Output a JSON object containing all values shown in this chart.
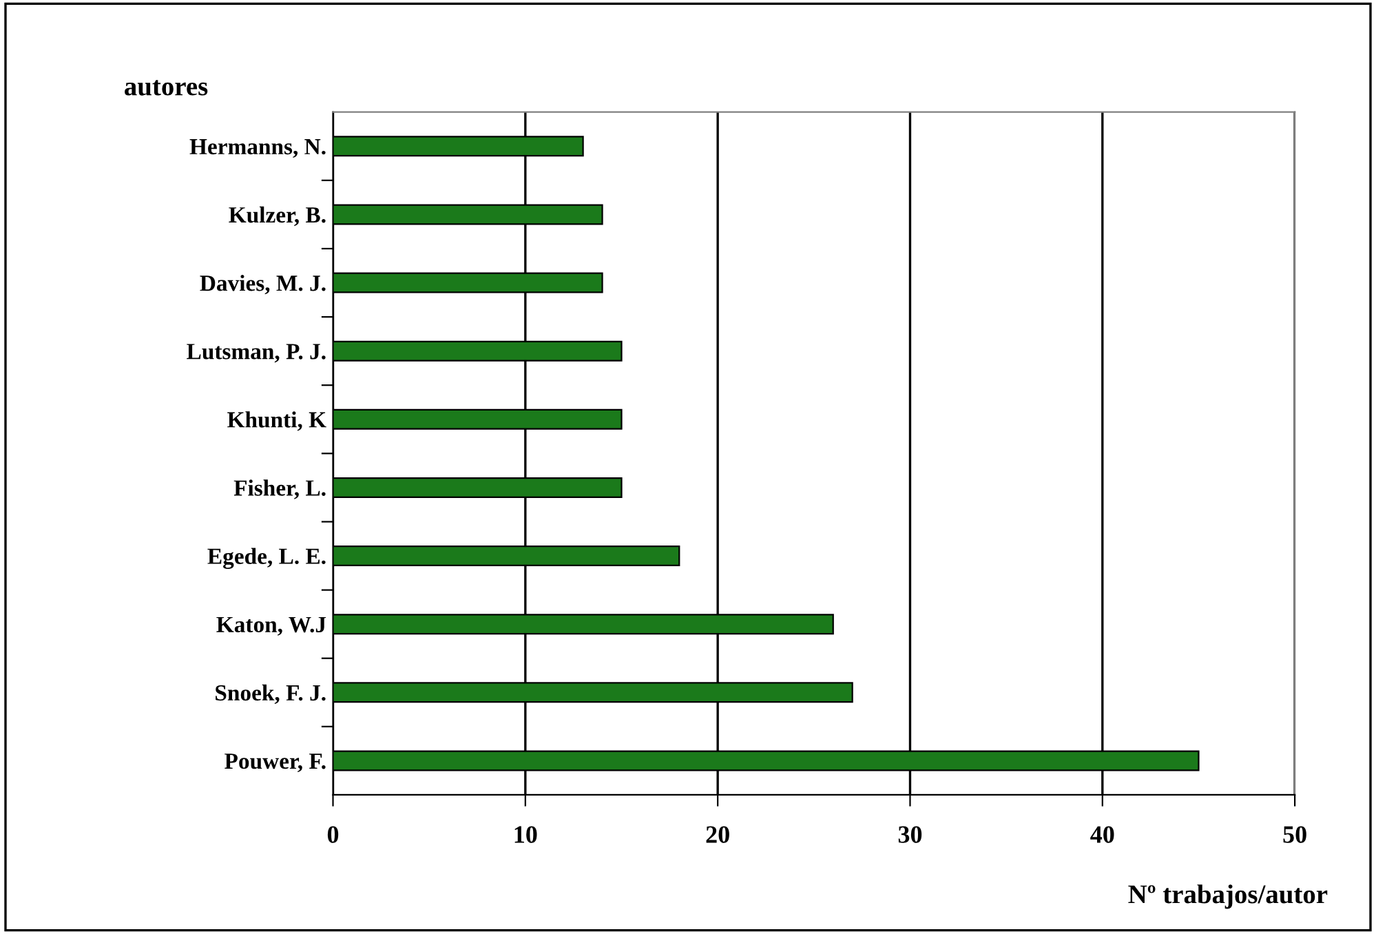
{
  "chart_data": {
    "type": "bar",
    "orientation": "horizontal",
    "xlabel": "Nº trabajos/autor",
    "ylabel": "autores",
    "categories": [
      "Hermanns, N.",
      "Kulzer, B.",
      "Davies, M. J.",
      "Lutsman, P. J.",
      "Khunti, K",
      "Fisher, L.",
      "Egede, L. E.",
      "Katon, W.J",
      "Snoek, F. J.",
      "Pouwer, F."
    ],
    "values": [
      13,
      14,
      14,
      15,
      15,
      15,
      18,
      26,
      27,
      45
    ],
    "color": "#1b7a1b",
    "xlim": [
      0,
      50
    ],
    "xticks": [
      0,
      10,
      20,
      30,
      40,
      50
    ],
    "grid": "x",
    "legend": false
  }
}
